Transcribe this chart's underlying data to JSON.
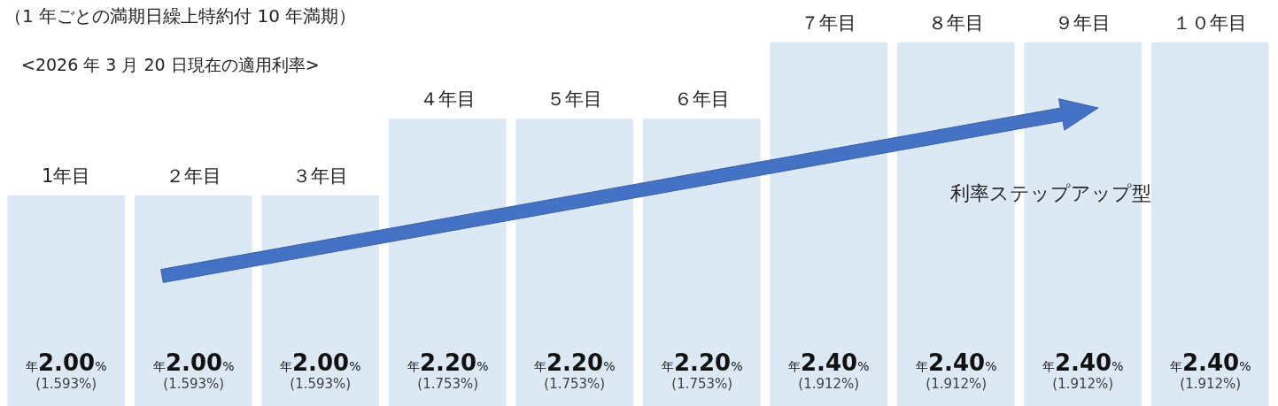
{
  "chart_data": {
    "type": "bar",
    "title": "（1 年ごとの満期日繰上特約付 10 年満期）",
    "subtitle": "<2026 年 3 月 20 日現在の適用利率>",
    "categories": [
      "1年目",
      "２年目",
      "３年目",
      "４年目",
      "５年目",
      "６年目",
      "７年目",
      "８年目",
      "９年目",
      "１０年目"
    ],
    "values": [
      2.0,
      2.0,
      2.0,
      2.2,
      2.2,
      2.2,
      2.4,
      2.4,
      2.4,
      2.4
    ],
    "color": "#dde8f5",
    "value_labels": [
      "年2.00%\n(1.593%)",
      "年2.00%\n(1.593%)",
      "年2.00%\n(1.593%)",
      "年2.20%\n(1.753%)",
      "年2.20%\n(1.753%)",
      "年2.20%\n(1.753%)",
      "年2.40%\n(1.912%)",
      "年2.40%\n(1.912%)",
      "年2.40%\n(1.912%)",
      "年2.40%\n(1.912%)"
    ],
    "ylim": [
      1.45,
      2.51
    ],
    "annotations": [
      "利率ステップアップ型"
    ]
  }
}
